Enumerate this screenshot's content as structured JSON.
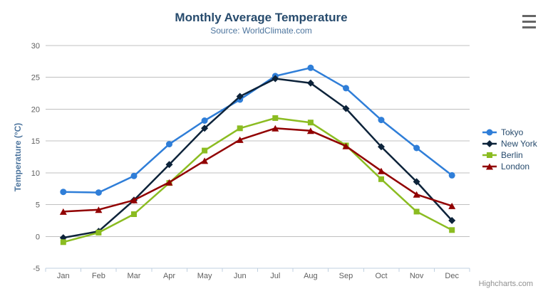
{
  "chart_data": {
    "type": "line",
    "title": "Monthly Average Temperature",
    "subtitle": "Source: WorldClimate.com",
    "xlabel": "",
    "ylabel": "Temperature (°C)",
    "categories": [
      "Jan",
      "Feb",
      "Mar",
      "Apr",
      "May",
      "Jun",
      "Jul",
      "Aug",
      "Sep",
      "Oct",
      "Nov",
      "Dec"
    ],
    "yticks": [
      30,
      25,
      20,
      15,
      10,
      5,
      0,
      -5
    ],
    "ylim": [
      -5,
      30
    ],
    "grid": true,
    "legend_position": "right-middle",
    "series": [
      {
        "name": "Tokyo",
        "marker": "circle",
        "color": "#2f7ed8",
        "values": [
          7.0,
          6.9,
          9.5,
          14.5,
          18.2,
          21.5,
          25.2,
          26.5,
          23.3,
          18.3,
          13.9,
          9.6
        ]
      },
      {
        "name": "New York",
        "marker": "diamond",
        "color": "#0d233a",
        "values": [
          -0.2,
          0.8,
          5.7,
          11.3,
          17.0,
          22.0,
          24.8,
          24.1,
          20.1,
          14.1,
          8.6,
          2.5
        ]
      },
      {
        "name": "Berlin",
        "marker": "square",
        "color": "#8bbc21",
        "values": [
          -0.9,
          0.6,
          3.5,
          8.4,
          13.5,
          17.0,
          18.6,
          17.9,
          14.3,
          9.0,
          3.9,
          1.0
        ]
      },
      {
        "name": "London",
        "marker": "triangle",
        "color": "#910000",
        "values": [
          3.9,
          4.2,
          5.7,
          8.5,
          11.9,
          15.2,
          17.0,
          16.6,
          14.2,
          10.3,
          6.6,
          4.8
        ]
      }
    ]
  },
  "credits": {
    "text": "Highcharts.com"
  },
  "icons": {
    "context_menu": "hamburger-icon"
  },
  "theme": {
    "title_color": "#274b6d",
    "subtitle_color": "#4d759e",
    "axis_label_color": "#606060",
    "axis_title_color": "#4d759e",
    "grid_color": "#c0c0c0",
    "axis_line_color": "#c0d0e0",
    "legend_text_color": "#274b6d",
    "credits_color": "#909090",
    "burger_color": "#666666"
  }
}
